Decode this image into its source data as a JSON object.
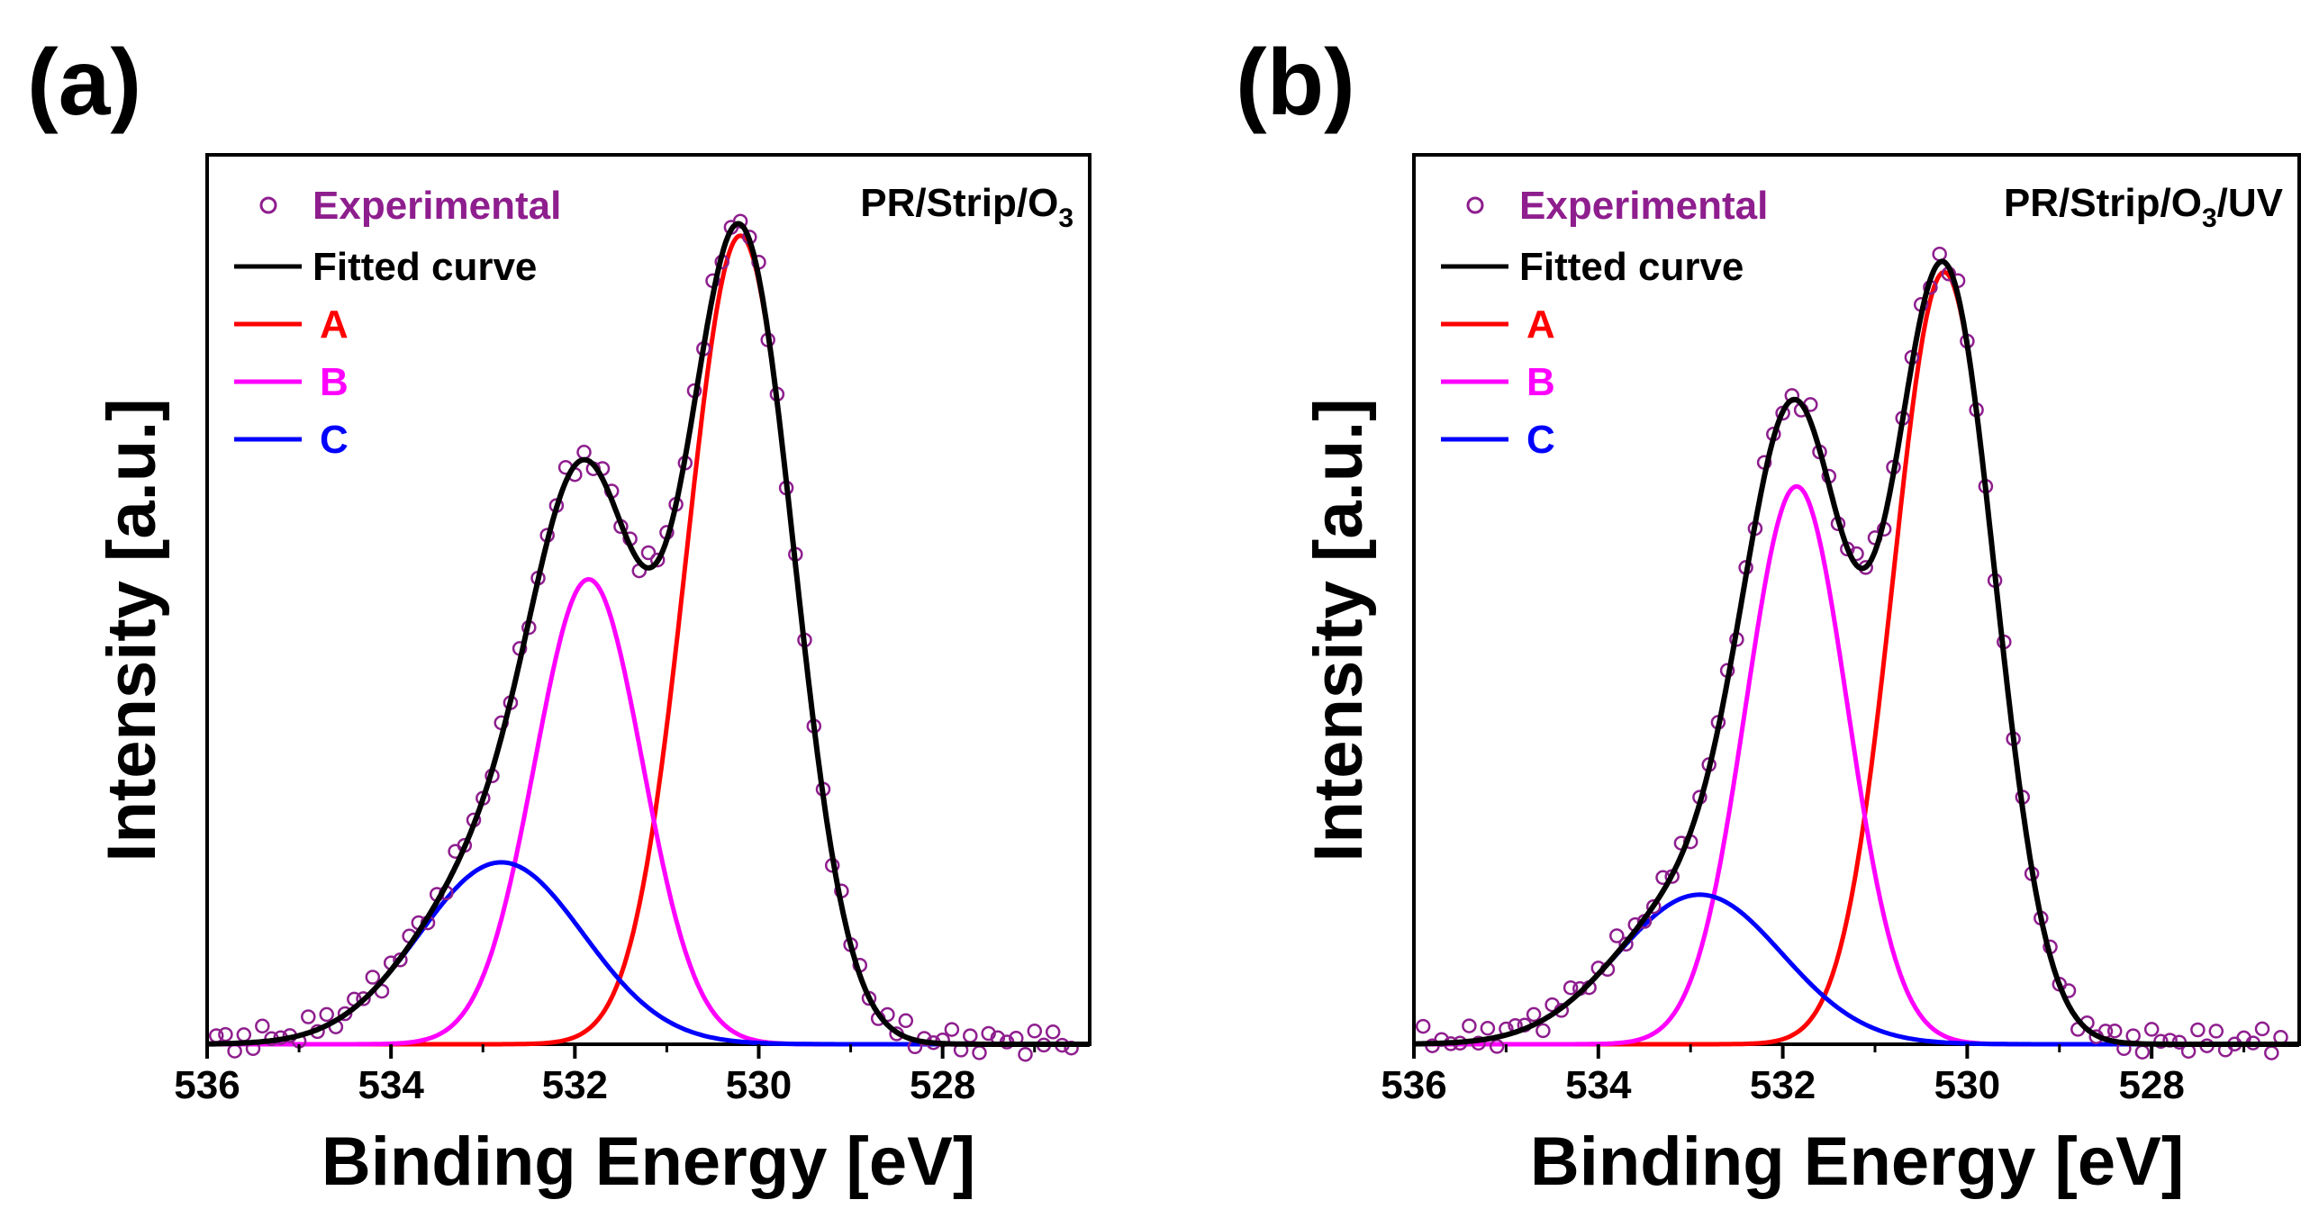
{
  "chart_data": [
    {
      "panel_label": "(a)",
      "type": "line",
      "sample": "PR/Strip/O",
      "sample_sub": "3",
      "sample_tail": "",
      "xlabel": "Binding Energy [eV]",
      "ylabel": "Intensity [a.u.]",
      "xlim": [
        536,
        526.4
      ],
      "ylim": [
        0,
        1.1
      ],
      "x_ticks": [
        536,
        534,
        532,
        530,
        528
      ],
      "x_tick_labels": [
        "536",
        "534",
        "532",
        "530",
        "528"
      ],
      "legend": [
        {
          "label": "Experimental",
          "color": "#8e1e8e",
          "kind": "marker"
        },
        {
          "label": "Fitted curve",
          "color": "#000000",
          "kind": "line"
        },
        {
          "label": "A",
          "color": "#ff0000",
          "kind": "line"
        },
        {
          "label": "B",
          "color": "#ff00ff",
          "kind": "line"
        },
        {
          "label": "C",
          "color": "#0000ff",
          "kind": "line"
        }
      ],
      "components": [
        {
          "name": "A",
          "center": 530.2,
          "height": 1.0,
          "fwhm": 1.38,
          "color": "#ff0000"
        },
        {
          "name": "B",
          "center": 531.85,
          "height": 0.575,
          "fwhm": 1.38,
          "color": "#ff00ff"
        },
        {
          "name": "C",
          "center": 532.8,
          "height": 0.225,
          "fwhm": 2.1,
          "color": "#0000ff"
        }
      ],
      "experimental": {
        "start": 535.9,
        "end": 526.6,
        "step": 0.1,
        "baseline_noise": 0.012
      }
    },
    {
      "panel_label": "(b)",
      "type": "line",
      "sample": "PR/Strip/O",
      "sample_sub": "3",
      "sample_tail": "/UV",
      "xlabel": "Binding Energy [eV]",
      "ylabel": "Intensity [a.u.]",
      "xlim": [
        536,
        526.4
      ],
      "ylim": [
        0,
        1.1
      ],
      "x_ticks": [
        536,
        534,
        532,
        530,
        528
      ],
      "x_tick_labels": [
        "536",
        "534",
        "532",
        "530",
        "528"
      ],
      "legend": [
        {
          "label": "Experimental",
          "color": "#8e1e8e",
          "kind": "marker"
        },
        {
          "label": "Fitted curve",
          "color": "#000000",
          "kind": "line"
        },
        {
          "label": "A",
          "color": "#ff0000",
          "kind": "line"
        },
        {
          "label": "B",
          "color": "#ff00ff",
          "kind": "line"
        },
        {
          "label": "C",
          "color": "#0000ff",
          "kind": "line"
        }
      ],
      "components": [
        {
          "name": "A",
          "center": 530.25,
          "height": 0.955,
          "fwhm": 1.3,
          "color": "#ff0000"
        },
        {
          "name": "B",
          "center": 531.85,
          "height": 0.69,
          "fwhm": 1.3,
          "color": "#ff00ff"
        },
        {
          "name": "C",
          "center": 532.9,
          "height": 0.185,
          "fwhm": 2.1,
          "color": "#0000ff"
        }
      ],
      "experimental": {
        "start": 535.9,
        "end": 526.6,
        "step": 0.1,
        "baseline_noise": 0.012
      }
    }
  ]
}
